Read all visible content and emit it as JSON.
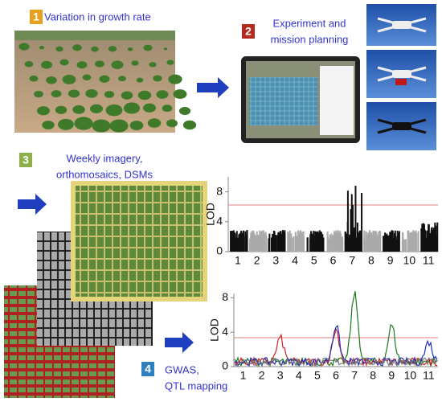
{
  "steps": [
    {
      "number": "1",
      "lines": [
        "Variation in growth rate"
      ]
    },
    {
      "number": "2",
      "lines": [
        "Experiment and",
        "mission planning"
      ]
    },
    {
      "number": "3",
      "lines": [
        "Weekly imagery,",
        "orthomosaics, DSMs"
      ]
    },
    {
      "number": "4",
      "lines": [
        "GWAS,",
        "QTL mapping"
      ]
    }
  ],
  "manhattan": {
    "ylabel": "LOD",
    "ylim": [
      0,
      10
    ],
    "yticks": [
      0,
      4,
      8
    ],
    "xlabels": [
      "1",
      "2",
      "3",
      "4",
      "5",
      "6",
      "7",
      "8",
      "9",
      "10",
      "11"
    ]
  },
  "qtl": {
    "ylabel": "LOD",
    "ylim": [
      0,
      8.5
    ],
    "yticks": [
      0,
      4,
      8
    ],
    "xlabels": [
      "1",
      "2",
      "3",
      "4",
      "5",
      "6",
      "7",
      "8",
      "9",
      "10",
      "11"
    ]
  }
}
